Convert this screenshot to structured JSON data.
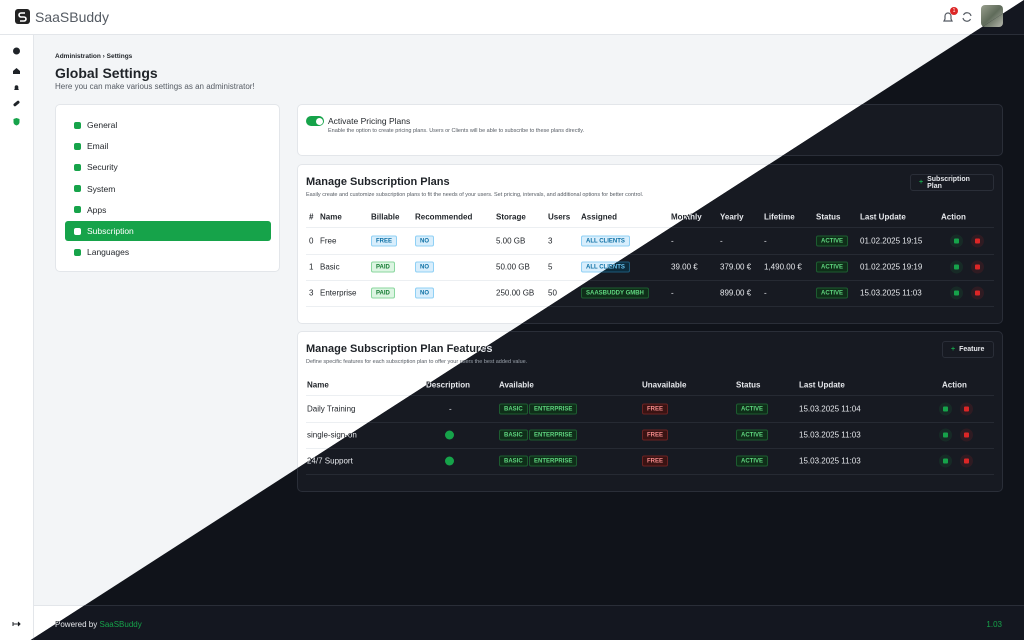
{
  "app": {
    "brand": "SaaSBuddy",
    "notification_count": "1"
  },
  "breadcrumb": [
    "Administration",
    "Settings"
  ],
  "page": {
    "title": "Global Settings",
    "subtitle": "Here you can make various settings as an administrator!"
  },
  "settings_menu": [
    "General",
    "Email",
    "Security",
    "System",
    "Apps",
    "Subscription",
    "Languages"
  ],
  "pricing_toggle": {
    "label": "Activate Pricing Plans",
    "description": "Enable the option to create pricing plans. Users or Clients will be able to subscribe to these plans directly."
  },
  "plans": {
    "title": "Manage Subscription Plans",
    "description": "Easily create and customize subscription plans to fit the needs of your users. Set pricing, intervals, and additional options for better control.",
    "button": "Subscription Plan",
    "columns": [
      "#",
      "Name",
      "Billable",
      "Recommended",
      "Storage",
      "Users",
      "Assigned",
      "Monthly",
      "Yearly",
      "Lifetime",
      "Status",
      "Last Update",
      "Action"
    ],
    "rows": [
      [
        "0",
        "Free",
        "FREE",
        "NO",
        "5.00 GB",
        "3",
        "ALL CLIENTS",
        "-",
        "-",
        "-",
        "ACTIVE",
        "01.02.2025 19:15"
      ],
      [
        "1",
        "Basic",
        "PAID",
        "NO",
        "50.00 GB",
        "5",
        "ALL CLIENTS",
        "39.00 €",
        "379.00 €",
        "1,490.00 €",
        "ACTIVE",
        "01.02.2025 19:19"
      ],
      [
        "3",
        "Enterprise",
        "PAID",
        "NO",
        "250.00 GB",
        "50",
        "SAASBUDDY GMBH",
        "-",
        "899.00 €",
        "-",
        "ACTIVE",
        "15.03.2025 11:03"
      ]
    ]
  },
  "features": {
    "title": "Manage Subscription Plan Features",
    "description": "Define specific features for each subscription plan to offer your users the best added value.",
    "button": "Feature",
    "columns": [
      "Name",
      "Description",
      "Available",
      "Unavailable",
      "Status",
      "Last Update",
      "Action"
    ],
    "rows": [
      {
        "name": "Daily Training",
        "description": "-",
        "available": [
          "BASIC",
          "ENTERPRISE"
        ],
        "unavailable": [
          "FREE"
        ],
        "status": "ACTIVE",
        "updated": "15.03.2025 11:04"
      },
      {
        "name": "single-sign-on",
        "available": [
          "BASIC",
          "ENTERPRISE"
        ],
        "unavailable": [
          "FREE"
        ],
        "status": "ACTIVE",
        "updated": "15.03.2025 11:03"
      },
      {
        "name": "24/7 Support",
        "available": [
          "BASIC",
          "ENTERPRISE"
        ],
        "unavailable": [
          "FREE"
        ],
        "status": "ACTIVE",
        "updated": "15.03.2025 11:03"
      }
    ]
  },
  "footer": {
    "powered_by": "Powered by",
    "link": "SaaSBuddy",
    "version": "1.03"
  }
}
